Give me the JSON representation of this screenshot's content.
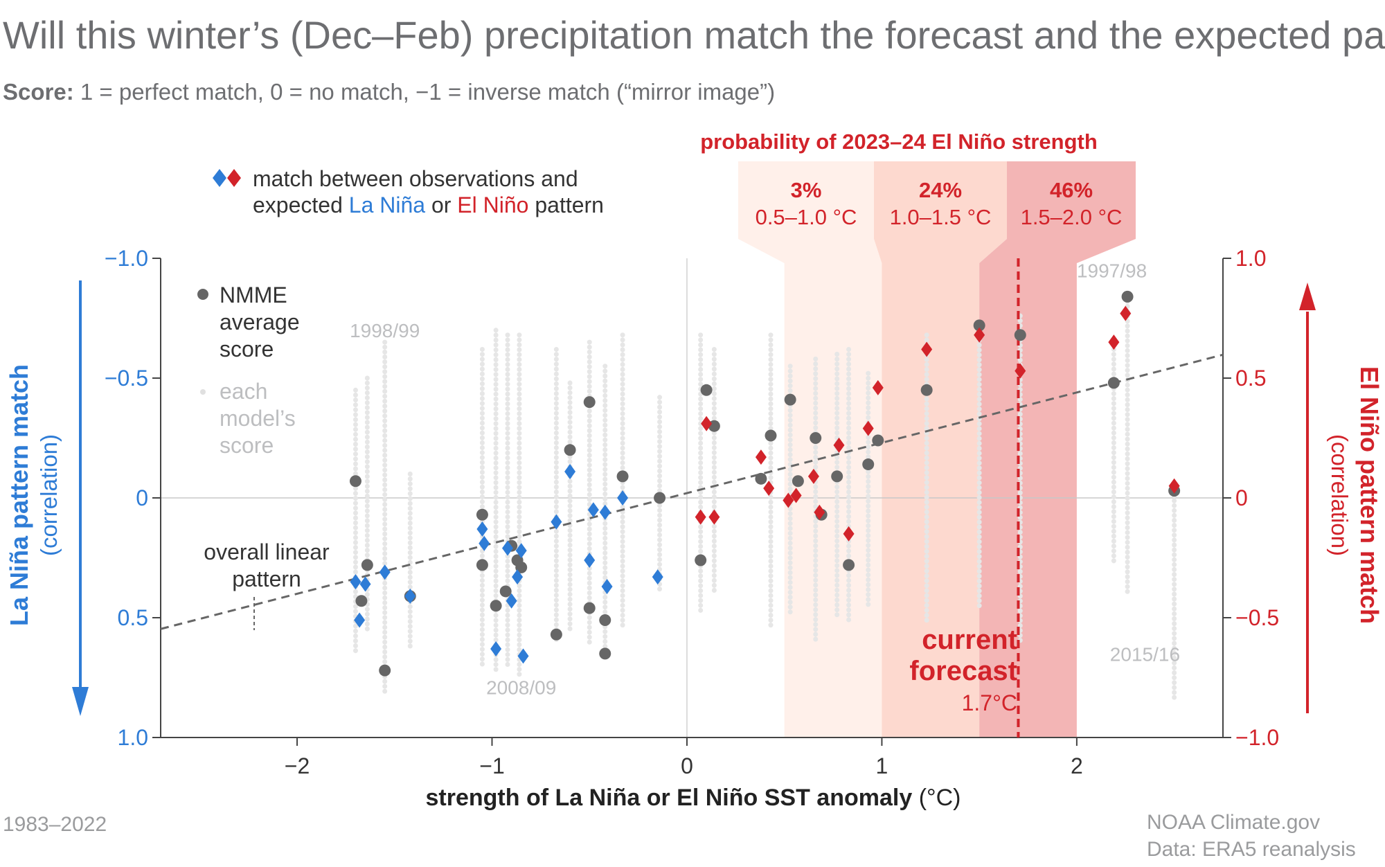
{
  "title": "Will this winter’s (Dec–Feb) precipitation match the forecast and the expected pattern?",
  "subtitle": {
    "bold": "Score:",
    "text": " 1 = perfect match, 0 = no match, −1 = inverse match (“mirror image”)"
  },
  "colors": {
    "la_nina": "#2e7cd6",
    "el_nino": "#d2232a",
    "nmme": "#666666",
    "model": "#e6e6e6",
    "band_3": "#fff0ea",
    "band_24": "#fdd9cf",
    "band_46": "#f3b5b5",
    "text_gray": "#6d6e71",
    "note_gray": "#bdbec0"
  },
  "legend": {
    "pattern_line1": "match between observations and",
    "pattern_line2_a": "expected ",
    "pattern_line2_lanina": "La Niña",
    "pattern_line2_or": " or ",
    "pattern_line2_elnino": "El Niño",
    "pattern_line2_b": " pattern",
    "nmme": [
      "NMME",
      "average",
      "score"
    ],
    "model": [
      "each",
      "model’s",
      "score"
    ],
    "linear": [
      "overall linear",
      "pattern"
    ]
  },
  "probability": {
    "header": "probability of 2023–24 El Niño strength",
    "bands": [
      {
        "pct": "3%",
        "range": "0.5–1.0 °C",
        "x0": 0.5,
        "x1": 1.0
      },
      {
        "pct": "24%",
        "range": "1.0–1.5 °C",
        "x0": 1.0,
        "x1": 1.5
      },
      {
        "pct": "46%",
        "range": "1.5–2.0 °C",
        "x0": 1.5,
        "x1": 2.0
      }
    ]
  },
  "forecast": {
    "lines": [
      "current",
      "forecast"
    ],
    "value_label": "1.7°C",
    "x": 1.7
  },
  "year_labels": [
    {
      "text": "1998/99",
      "x": -1.55,
      "y": 0.67
    },
    {
      "text": "2008/09",
      "x": -0.85,
      "y": -0.82
    },
    {
      "text": "1997/98",
      "x": 2.18,
      "y": 0.92
    },
    {
      "text": "2015/16",
      "x": 2.35,
      "y": -0.68
    }
  ],
  "footer": {
    "left": "1983–2022",
    "right1": "NOAA Climate.gov",
    "right2": "Data: ERA5 reanalysis"
  },
  "chart_data": {
    "type": "scatter",
    "xlabel": "strength of La Niña or El Niño SST anomaly",
    "xlabel_unit": " (°C)",
    "ylabel_left": "La Niña pattern match",
    "ylabel_left_sub": "(correlation)",
    "ylabel_right": "El Niño pattern match",
    "ylabel_right_sub": "(correlation)",
    "xlim": [
      -2.7,
      2.75
    ],
    "ylim": [
      -1.0,
      1.0
    ],
    "x_ticks": [
      -2,
      -1,
      0,
      1,
      2
    ],
    "x_tick_labels": [
      "−2",
      "−1",
      "0",
      "1",
      "2"
    ],
    "left_ticks": [
      1.0,
      0.5,
      0,
      -0.5,
      -1.0
    ],
    "left_tick_labels": [
      "−1.0",
      "−0.5",
      "0",
      "0.5",
      "1.0"
    ],
    "right_ticks": [
      1.0,
      0.5,
      0,
      -0.5,
      -1.0
    ],
    "right_tick_labels": [
      "1.0",
      "0.5",
      "0",
      "−0.5",
      "−1.0"
    ],
    "linear_fit": {
      "slope": 0.21,
      "intercept": 0.02
    },
    "series": [
      {
        "name": "La Niña",
        "marker": "diamond",
        "points": [
          [
            -1.7,
            -0.35
          ],
          [
            -1.65,
            -0.36
          ],
          [
            -1.68,
            -0.51
          ],
          [
            -1.55,
            -0.31
          ],
          [
            -1.42,
            -0.41
          ],
          [
            -1.05,
            -0.13
          ],
          [
            -1.04,
            -0.19
          ],
          [
            -0.98,
            -0.63
          ],
          [
            -0.92,
            -0.21
          ],
          [
            -0.9,
            -0.43
          ],
          [
            -0.87,
            -0.33
          ],
          [
            -0.85,
            -0.22
          ],
          [
            -0.84,
            -0.66
          ],
          [
            -0.67,
            -0.1
          ],
          [
            -0.6,
            0.11
          ],
          [
            -0.5,
            -0.26
          ],
          [
            -0.48,
            -0.05
          ],
          [
            -0.42,
            -0.06
          ],
          [
            -0.41,
            -0.37
          ],
          [
            -0.33,
            0.0
          ],
          [
            -0.15,
            -0.33
          ]
        ]
      },
      {
        "name": "El Niño",
        "marker": "diamond",
        "points": [
          [
            0.07,
            -0.08
          ],
          [
            0.1,
            0.31
          ],
          [
            0.14,
            -0.08
          ],
          [
            0.38,
            0.17
          ],
          [
            0.42,
            0.04
          ],
          [
            0.52,
            -0.01
          ],
          [
            0.56,
            0.01
          ],
          [
            0.65,
            0.09
          ],
          [
            0.68,
            -0.06
          ],
          [
            0.78,
            0.22
          ],
          [
            0.83,
            -0.15
          ],
          [
            0.93,
            0.29
          ],
          [
            0.98,
            0.46
          ],
          [
            1.23,
            0.62
          ],
          [
            1.5,
            0.68
          ],
          [
            1.71,
            0.53
          ],
          [
            2.19,
            0.65
          ],
          [
            2.25,
            0.77
          ],
          [
            2.5,
            0.05
          ]
        ]
      },
      {
        "name": "NMME average score",
        "marker": "circle",
        "points": [
          [
            -1.7,
            0.07
          ],
          [
            -1.64,
            -0.28
          ],
          [
            -1.67,
            -0.43
          ],
          [
            -1.55,
            -0.72
          ],
          [
            -1.42,
            -0.41
          ],
          [
            -1.05,
            -0.07
          ],
          [
            -1.05,
            -0.28
          ],
          [
            -0.98,
            -0.45
          ],
          [
            -0.93,
            -0.39
          ],
          [
            -0.9,
            -0.2
          ],
          [
            -0.87,
            -0.26
          ],
          [
            -0.85,
            -0.29
          ],
          [
            -0.6,
            0.2
          ],
          [
            -0.67,
            -0.57
          ],
          [
            -0.5,
            0.4
          ],
          [
            -0.5,
            -0.46
          ],
          [
            -0.42,
            -0.51
          ],
          [
            -0.42,
            -0.65
          ],
          [
            -0.33,
            0.09
          ],
          [
            -0.14,
            0.0
          ],
          [
            0.07,
            -0.26
          ],
          [
            0.1,
            0.45
          ],
          [
            0.14,
            0.3
          ],
          [
            0.38,
            0.08
          ],
          [
            0.43,
            0.26
          ],
          [
            0.53,
            0.41
          ],
          [
            0.57,
            0.07
          ],
          [
            0.66,
            0.25
          ],
          [
            0.69,
            -0.07
          ],
          [
            0.77,
            0.09
          ],
          [
            0.83,
            -0.28
          ],
          [
            0.93,
            0.14
          ],
          [
            0.98,
            0.24
          ],
          [
            1.23,
            0.45
          ],
          [
            1.5,
            0.72
          ],
          [
            1.71,
            0.68
          ],
          [
            2.19,
            0.48
          ],
          [
            2.26,
            0.84
          ],
          [
            2.5,
            0.03
          ]
        ]
      }
    ],
    "model_columns": [
      {
        "x": -1.7,
        "range": [
          -0.65,
          0.45
        ]
      },
      {
        "x": -1.64,
        "range": [
          -0.55,
          0.5
        ]
      },
      {
        "x": -1.55,
        "range": [
          -0.82,
          0.65
        ]
      },
      {
        "x": -1.42,
        "range": [
          -0.62,
          0.1
        ]
      },
      {
        "x": -1.05,
        "range": [
          -0.7,
          0.62
        ]
      },
      {
        "x": -0.98,
        "range": [
          -0.72,
          0.7
        ]
      },
      {
        "x": -0.92,
        "range": [
          -0.7,
          0.68
        ]
      },
      {
        "x": -0.86,
        "range": [
          -0.75,
          0.68
        ]
      },
      {
        "x": -0.67,
        "range": [
          -0.6,
          0.62
        ]
      },
      {
        "x": -0.6,
        "range": [
          -0.55,
          0.48
        ]
      },
      {
        "x": -0.5,
        "range": [
          -0.62,
          0.65
        ]
      },
      {
        "x": -0.42,
        "range": [
          -0.68,
          0.55
        ]
      },
      {
        "x": -0.33,
        "range": [
          -0.55,
          0.68
        ]
      },
      {
        "x": -0.14,
        "range": [
          -0.4,
          0.42
        ]
      },
      {
        "x": 0.07,
        "range": [
          -0.48,
          0.68
        ]
      },
      {
        "x": 0.14,
        "range": [
          -0.4,
          0.62
        ]
      },
      {
        "x": 0.43,
        "range": [
          -0.55,
          0.68
        ]
      },
      {
        "x": 0.53,
        "range": [
          -0.48,
          0.55
        ]
      },
      {
        "x": 0.66,
        "range": [
          -0.6,
          0.58
        ]
      },
      {
        "x": 0.77,
        "range": [
          -0.5,
          0.6
        ]
      },
      {
        "x": 0.83,
        "range": [
          -0.52,
          0.62
        ]
      },
      {
        "x": 0.93,
        "range": [
          -0.45,
          0.52
        ]
      },
      {
        "x": 1.23,
        "range": [
          -0.52,
          0.68
        ]
      },
      {
        "x": 1.5,
        "range": [
          -0.45,
          0.72
        ]
      },
      {
        "x": 1.71,
        "range": [
          -0.6,
          0.76
        ]
      },
      {
        "x": 2.19,
        "range": [
          -0.28,
          0.62
        ]
      },
      {
        "x": 2.26,
        "range": [
          -0.4,
          0.82
        ]
      },
      {
        "x": 2.5,
        "range": [
          -0.85,
          0.05
        ]
      }
    ]
  }
}
